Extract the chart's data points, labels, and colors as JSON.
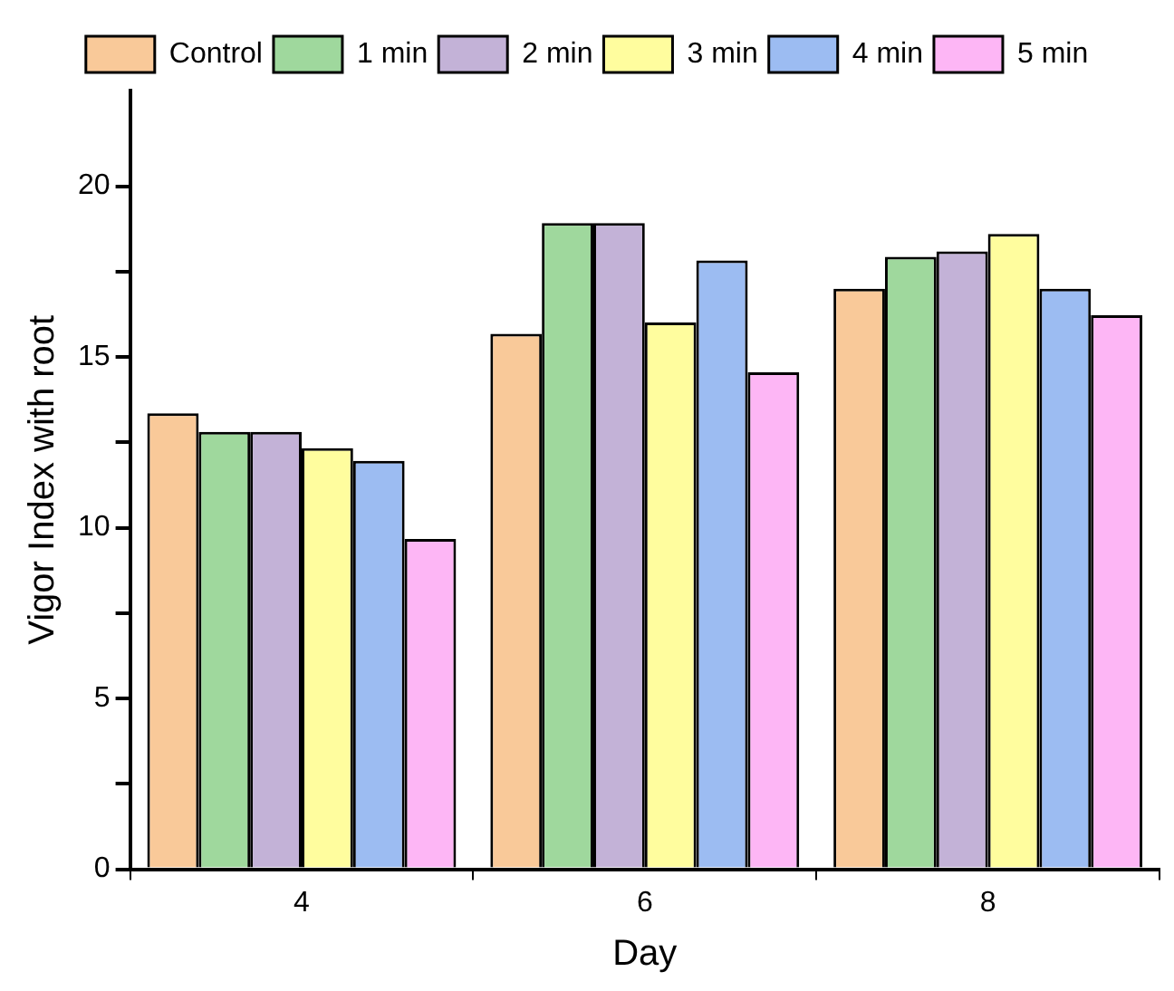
{
  "chart_data": {
    "type": "bar",
    "xlabel": "Day",
    "ylabel": "Vigor Index with root",
    "categories": [
      "4",
      "6",
      "8"
    ],
    "series": [
      {
        "name": "Control",
        "color": "#f9c999",
        "values": [
          13.35,
          15.68,
          17.0
        ]
      },
      {
        "name": "1 min",
        "color": "#9fd89d",
        "values": [
          12.81,
          18.92,
          17.93
        ]
      },
      {
        "name": "2 min",
        "color": "#c3b2d7",
        "values": [
          12.81,
          18.92,
          18.09
        ]
      },
      {
        "name": "3 min",
        "color": "#fffd9e",
        "values": [
          12.33,
          16.01,
          18.6
        ]
      },
      {
        "name": "4 min",
        "color": "#9cbcf2",
        "values": [
          11.96,
          17.83,
          17.0
        ]
      },
      {
        "name": "5 min",
        "color": "#fdb6f5",
        "values": [
          9.67,
          14.55,
          16.22
        ]
      }
    ],
    "ylim": [
      0,
      22.8
    ],
    "yticks": [
      0,
      {
        "value": 2.5,
        "label": null
      },
      5,
      {
        "value": 7.5,
        "label": null
      },
      10,
      {
        "value": 12.5,
        "label": null
      },
      15,
      {
        "value": 17.5,
        "label": null
      },
      20
    ],
    "legend": "top",
    "grid": false
  }
}
